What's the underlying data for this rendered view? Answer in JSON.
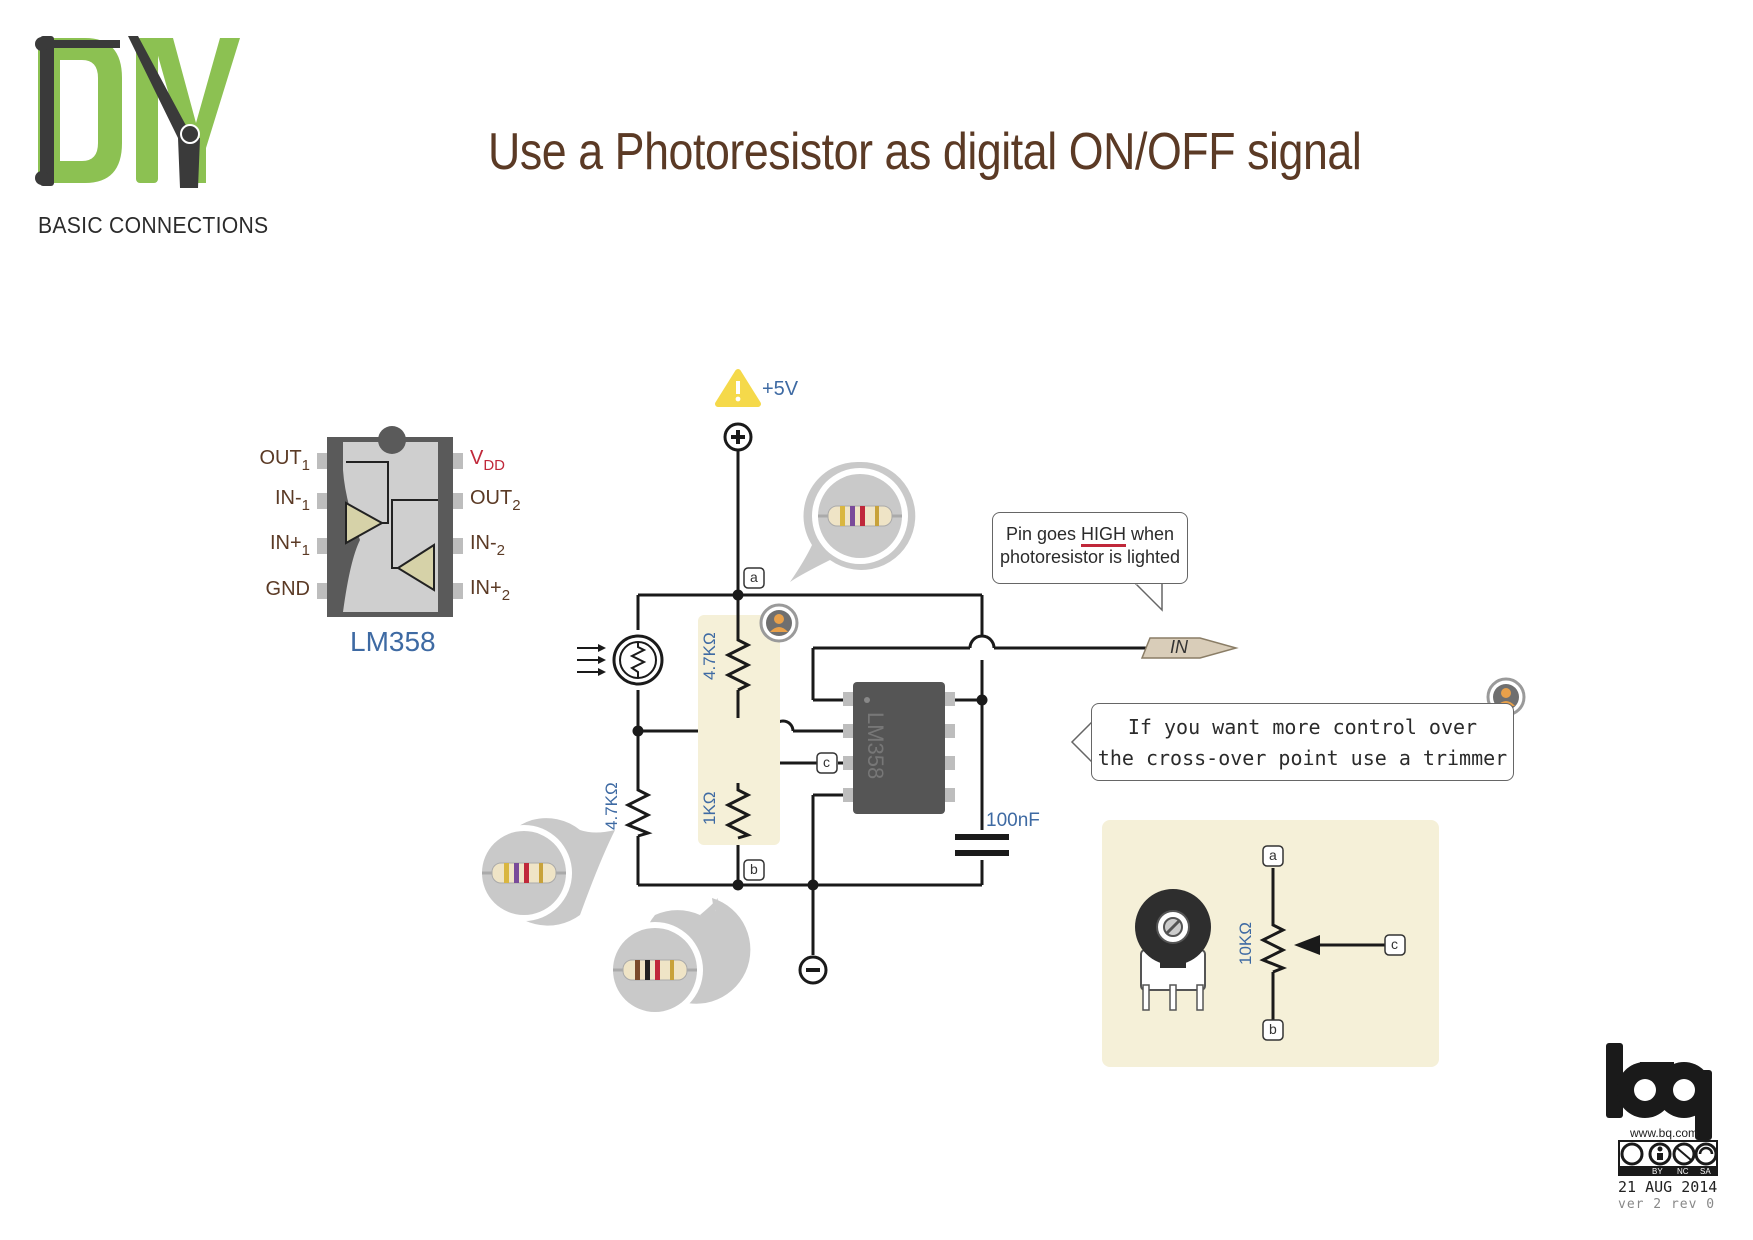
{
  "header": {
    "logo_text": "DIY",
    "logo_subtitle": "BASIC CONNECTIONS",
    "title": "Use a Photoresistor as digital ON/OFF signal"
  },
  "ic_pinout": {
    "name": "LM358",
    "left_pins": [
      {
        "base": "OUT",
        "sub": "1"
      },
      {
        "base": "IN-",
        "sub": "1"
      },
      {
        "base": "IN+",
        "sub": "1"
      },
      {
        "base": "GND",
        "sub": ""
      }
    ],
    "right_pins": [
      {
        "base": "V",
        "sub": "DD"
      },
      {
        "base": "OUT",
        "sub": "2"
      },
      {
        "base": "IN-",
        "sub": "2"
      },
      {
        "base": "IN+",
        "sub": "2"
      }
    ]
  },
  "schematic": {
    "supply_label": "+5V",
    "chip_marking": "LM358",
    "r_top": "4.7KΩ",
    "r_bottom_mid": "1KΩ",
    "r_left": "4.7KΩ",
    "capacitor": "100nF",
    "output_label": "IN",
    "node_a": "a",
    "node_b": "b",
    "node_c": "c"
  },
  "notes": {
    "pin_high_before": "Pin goes ",
    "pin_high_word": "HIGH",
    "pin_high_after": " when",
    "pin_high_line2": "photoresistor is lighted",
    "trimmer_line1": "If you want more control over",
    "trimmer_line2": "the cross-over point use a trimmer"
  },
  "trimmer": {
    "value": "10KΩ",
    "node_a": "a",
    "node_b": "b",
    "node_c": "c"
  },
  "footer": {
    "brand": "bq",
    "url": "www.bq.com",
    "license": [
      "BY",
      "NC",
      "SA"
    ],
    "date": "21 AUG 2014",
    "version": "ver 2 rev 0"
  },
  "colors": {
    "title_brown": "#5b3a25",
    "logo_green": "#8cc152",
    "label_blue": "#3e6aa3",
    "accent_red": "#c0283a",
    "highlight_cream": "#f5f0d8"
  }
}
